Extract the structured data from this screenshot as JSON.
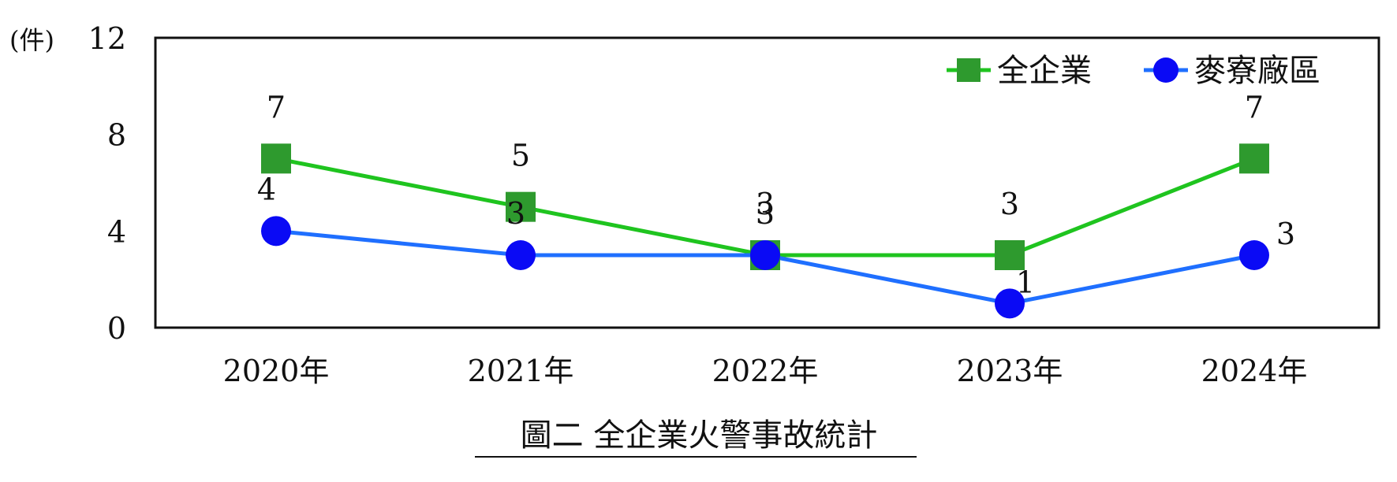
{
  "chart_data": {
    "type": "line",
    "title": "圖二  全企業火警事故統計",
    "unit_label": "(件)",
    "categories": [
      "2020年",
      "2021年",
      "2022年",
      "2023年",
      "2024年"
    ],
    "ylim": [
      0,
      12
    ],
    "yticks": [
      0,
      4,
      8,
      12
    ],
    "grid": false,
    "legend_position": "top-right",
    "series": [
      {
        "name": "全企業",
        "values": [
          7,
          5,
          3,
          3,
          7
        ],
        "color": "#1fc41f",
        "marker": "square",
        "marker_color": "#2e9a2e"
      },
      {
        "name": "麥寮廠區",
        "values": [
          4,
          3,
          3,
          1,
          3
        ],
        "color": "#1f6fff",
        "marker": "circle",
        "marker_color": "#0a0af5"
      }
    ]
  }
}
